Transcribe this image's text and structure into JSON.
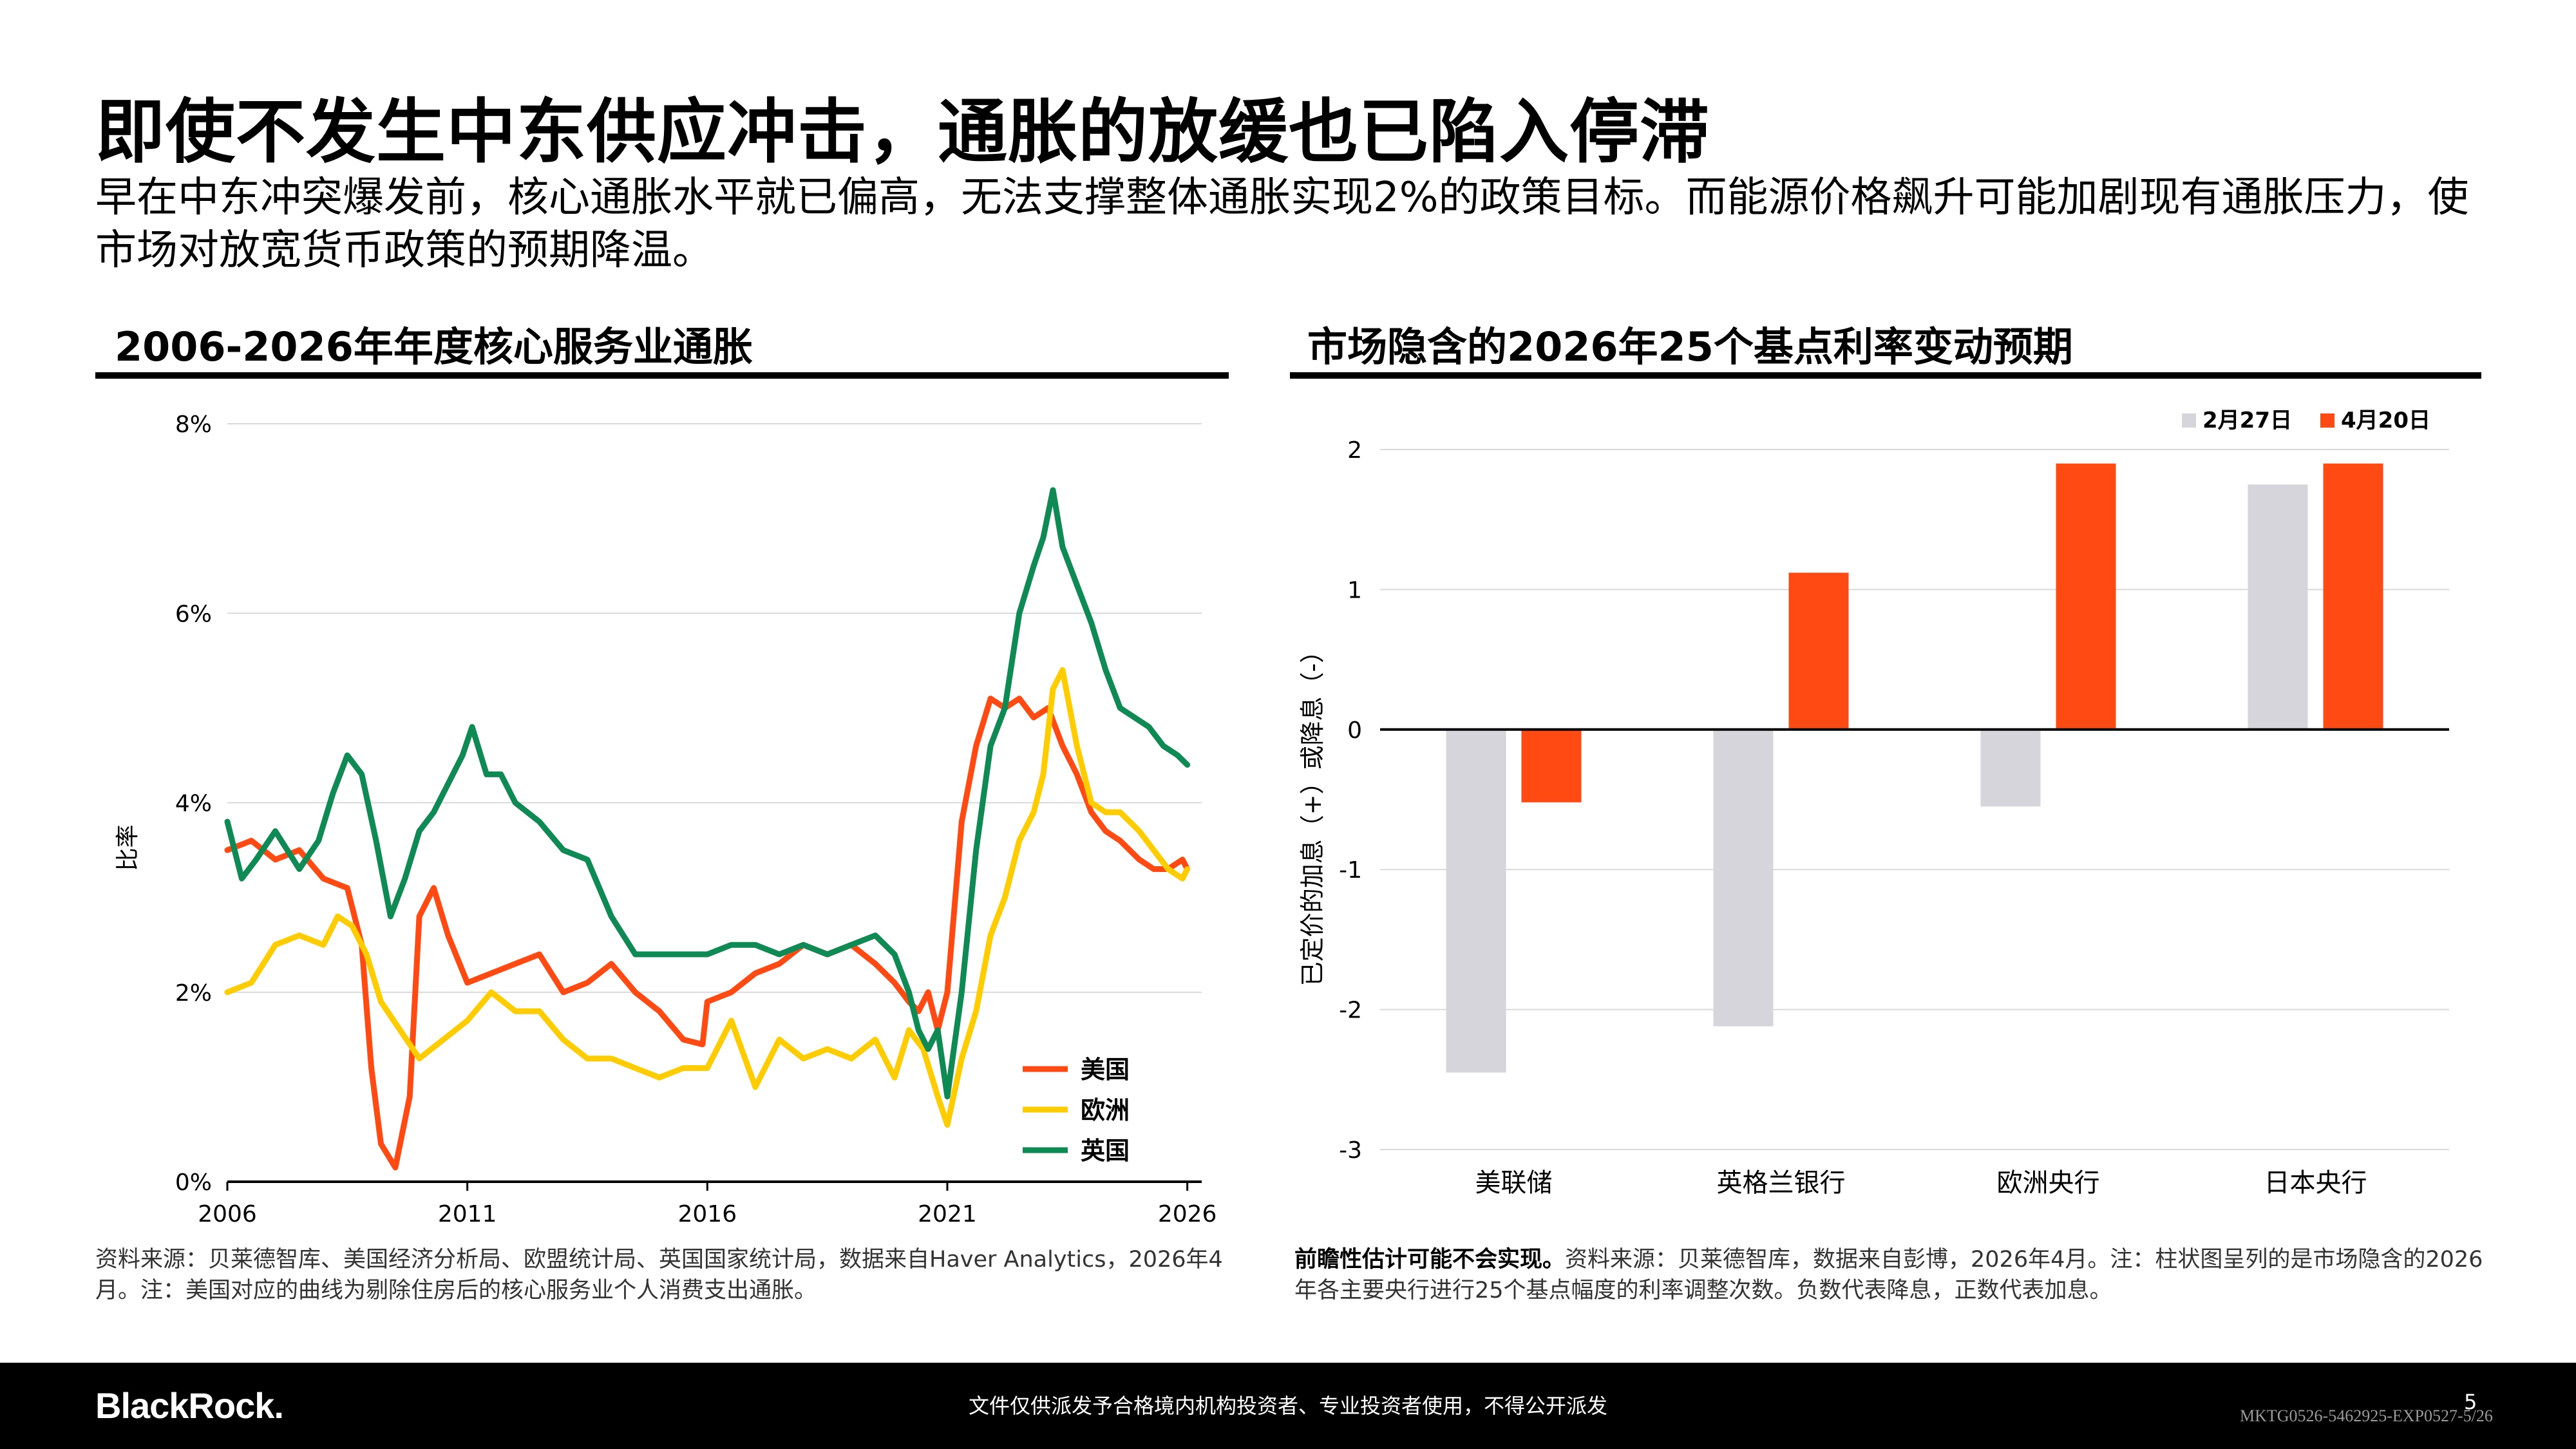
{
  "page": {
    "title": "即使不发生中东供应冲击，通胀的放缓也已陷入停滞",
    "subtitle": "早在中东冲突爆发前，核心通胀水平就已偏高，无法支撑整体通胀实现2%的政策目标。而能源价格飙升可能加剧现有通胀压力，使市场对放宽货币政策的预期降温。",
    "footer_disclaimer": "文件仅供派发予合格境内机构投资者、专业投资者使用，不得公开派发",
    "page_number": "5",
    "doc_code": "MKTG0526-5462925-EXP0527-5/26",
    "logo_text": "BlackRock."
  },
  "left_panel": {
    "title": "2006-2026年年度核心服务业通胀",
    "note": "资料来源：贝莱德智库、美国经济分析局、欧盟统计局、英国国家统计局，数据来自Haver Analytics，2026年4月。注：美国对应的曲线为剔除住房后的核心服务业个人消费支出通胀。"
  },
  "right_panel": {
    "title": "市场隐含的2026年25个基点利率变动预期",
    "note_bold": "前瞻性估计可能不会实现。",
    "note": "资料来源：贝莱德智库，数据来自彭博，2026年4月。注：柱状图呈列的是市场隐含的2026年各主要央行进行25个基点幅度的利率调整次数。负数代表降息，正数代表加息。"
  },
  "chart_data": [
    {
      "type": "line",
      "title": "2006-2026年年度核心服务业通胀",
      "ylabel": "比率",
      "xlabel": "",
      "xlim": [
        2006,
        2026.3
      ],
      "ylim": [
        0,
        8
      ],
      "x_ticks": [
        "2006",
        "2011",
        "2016",
        "2021",
        "2026"
      ],
      "y_ticks": [
        "0%",
        "2%",
        "4%",
        "6%",
        "8%"
      ],
      "grid": true,
      "legend_position": "bottom-right",
      "series": [
        {
          "name": "美国",
          "color": "#ff4a14",
          "x": [
            2006.0,
            2006.5,
            2007.0,
            2007.5,
            2008.0,
            2008.5,
            2008.8,
            2009.0,
            2009.2,
            2009.5,
            2009.8,
            2010.0,
            2010.3,
            2010.6,
            2011.0,
            2011.5,
            2012.0,
            2012.5,
            2013.0,
            2013.5,
            2014.0,
            2014.5,
            2015.0,
            2015.5,
            2015.9,
            2016.0,
            2016.5,
            2017.0,
            2017.5,
            2018.0,
            2018.5,
            2019.0,
            2019.5,
            2019.9,
            2020.2,
            2020.4,
            2020.6,
            2020.8,
            2021.0,
            2021.3,
            2021.6,
            2021.9,
            2022.2,
            2022.5,
            2022.8,
            2023.1,
            2023.4,
            2023.7,
            2024.0,
            2024.3,
            2024.6,
            2025.0,
            2025.3,
            2025.6,
            2025.9,
            2026.0
          ],
          "y": [
            3.5,
            3.6,
            3.4,
            3.5,
            3.2,
            3.1,
            2.5,
            1.2,
            0.4,
            0.15,
            0.9,
            2.8,
            3.1,
            2.6,
            2.1,
            2.2,
            2.3,
            2.4,
            2.0,
            2.1,
            2.3,
            2.0,
            1.8,
            1.5,
            1.45,
            1.9,
            2.0,
            2.2,
            2.3,
            2.5,
            2.4,
            2.5,
            2.3,
            2.1,
            1.9,
            1.8,
            2.0,
            1.6,
            2.0,
            3.8,
            4.6,
            5.1,
            5.0,
            5.1,
            4.9,
            5.0,
            4.6,
            4.3,
            3.9,
            3.7,
            3.6,
            3.4,
            3.3,
            3.3,
            3.4,
            3.3
          ]
        },
        {
          "name": "欧洲",
          "color": "#ffcc00",
          "x": [
            2006.0,
            2006.5,
            2007.0,
            2007.5,
            2008.0,
            2008.3,
            2008.6,
            2008.9,
            2009.2,
            2009.6,
            2010.0,
            2010.5,
            2011.0,
            2011.5,
            2012.0,
            2012.5,
            2013.0,
            2013.5,
            2014.0,
            2014.5,
            2015.0,
            2015.5,
            2016.0,
            2016.5,
            2017.0,
            2017.5,
            2018.0,
            2018.5,
            2019.0,
            2019.5,
            2019.9,
            2020.2,
            2020.5,
            2020.8,
            2021.0,
            2021.3,
            2021.6,
            2021.9,
            2022.2,
            2022.5,
            2022.8,
            2023.0,
            2023.2,
            2023.4,
            2023.7,
            2024.0,
            2024.3,
            2024.6,
            2025.0,
            2025.3,
            2025.6,
            2025.9,
            2026.0
          ],
          "y": [
            2.0,
            2.1,
            2.5,
            2.6,
            2.5,
            2.8,
            2.7,
            2.4,
            1.9,
            1.6,
            1.3,
            1.5,
            1.7,
            2.0,
            1.8,
            1.8,
            1.5,
            1.3,
            1.3,
            1.2,
            1.1,
            1.2,
            1.2,
            1.7,
            1.0,
            1.5,
            1.3,
            1.4,
            1.3,
            1.5,
            1.1,
            1.6,
            1.4,
            0.9,
            0.6,
            1.3,
            1.8,
            2.6,
            3.0,
            3.6,
            3.9,
            4.3,
            5.2,
            5.4,
            4.6,
            4.0,
            3.9,
            3.9,
            3.7,
            3.5,
            3.3,
            3.2,
            3.3
          ]
        },
        {
          "name": "英国",
          "color": "#108a55",
          "x": [
            2006.0,
            2006.3,
            2006.6,
            2007.0,
            2007.5,
            2007.9,
            2008.2,
            2008.5,
            2008.8,
            2009.1,
            2009.4,
            2009.7,
            2010.0,
            2010.3,
            2010.6,
            2010.9,
            2011.1,
            2011.4,
            2011.7,
            2012.0,
            2012.5,
            2013.0,
            2013.5,
            2014.0,
            2014.5,
            2015.0,
            2015.5,
            2016.0,
            2016.5,
            2017.0,
            2017.5,
            2018.0,
            2018.5,
            2019.0,
            2019.5,
            2019.9,
            2020.2,
            2020.4,
            2020.6,
            2020.8,
            2021.0,
            2021.3,
            2021.6,
            2021.9,
            2022.2,
            2022.5,
            2022.8,
            2023.0,
            2023.2,
            2023.4,
            2023.7,
            2024.0,
            2024.3,
            2024.6,
            2024.9,
            2025.2,
            2025.5,
            2025.8,
            2026.0
          ],
          "y": [
            3.8,
            3.2,
            3.4,
            3.7,
            3.3,
            3.6,
            4.1,
            4.5,
            4.3,
            3.6,
            2.8,
            3.2,
            3.7,
            3.9,
            4.2,
            4.5,
            4.8,
            4.3,
            4.3,
            4.0,
            3.8,
            3.5,
            3.4,
            2.8,
            2.4,
            2.4,
            2.4,
            2.4,
            2.5,
            2.5,
            2.4,
            2.5,
            2.4,
            2.5,
            2.6,
            2.4,
            2.0,
            1.6,
            1.4,
            1.6,
            0.9,
            2.0,
            3.5,
            4.6,
            5.0,
            6.0,
            6.5,
            6.8,
            7.3,
            6.7,
            6.3,
            5.9,
            5.4,
            5.0,
            4.9,
            4.8,
            4.6,
            4.5,
            4.4
          ]
        }
      ]
    },
    {
      "type": "bar",
      "title": "市场隐含的2026年25个基点利率变动预期",
      "ylabel": "已定价的加息（+）或降息（-）",
      "xlabel": "",
      "ylim": [
        -3,
        2
      ],
      "y_ticks": [
        "-3",
        "-2",
        "-1",
        "0",
        "1",
        "2"
      ],
      "legend_position": "top-right",
      "categories": [
        "美联储",
        "英格兰银行",
        "欧洲央行",
        "日本央行"
      ],
      "series": [
        {
          "name": "2月27日",
          "color": "#d6d5db",
          "values": [
            -2.45,
            -2.12,
            -0.55,
            1.75
          ]
        },
        {
          "name": "4月20日",
          "color": "#ff4a14",
          "values": [
            -0.52,
            1.12,
            1.9,
            1.9
          ]
        }
      ]
    }
  ]
}
